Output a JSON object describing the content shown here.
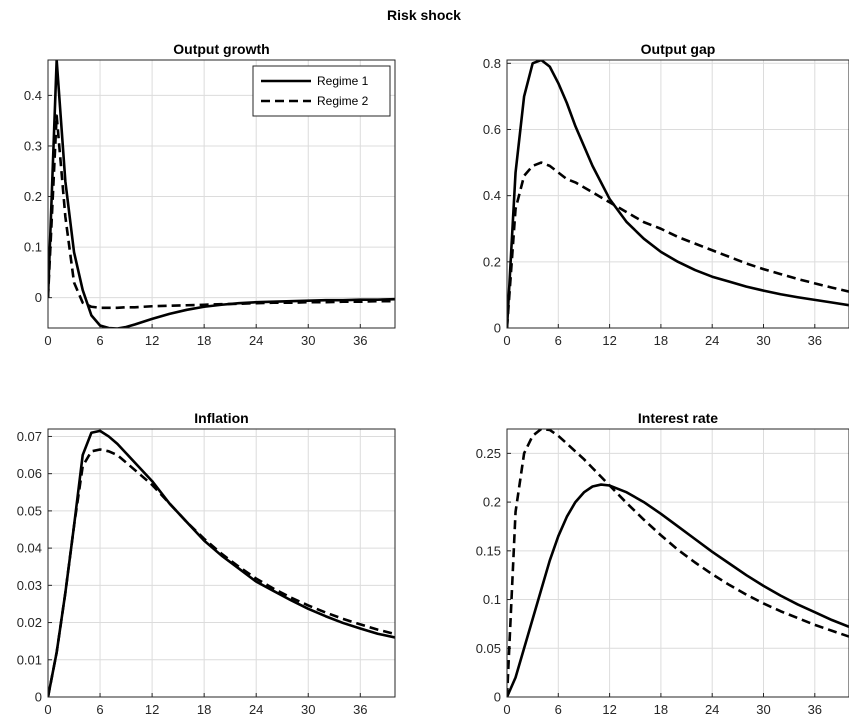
{
  "figure_title": "Risk shock",
  "colors": {
    "series_color": "#000000",
    "grid": "#dcdcdc",
    "axis": "#262626",
    "background": "#ffffff"
  },
  "chart_data": [
    {
      "type": "line",
      "title": "Output growth",
      "xlim": [
        0,
        40
      ],
      "ylim": [
        -0.06,
        0.47
      ],
      "xticks": [
        "0",
        "6",
        "12",
        "18",
        "24",
        "30",
        "36"
      ],
      "yticks": [
        "0",
        "0.1",
        "0.2",
        "0.3",
        "0.4"
      ],
      "grid": true,
      "legend": {
        "position": "top-right",
        "entries": [
          "Regime 1",
          "Regime 2"
        ]
      },
      "x": [
        0,
        1,
        2,
        3,
        4,
        5,
        6,
        7,
        8,
        9,
        10,
        12,
        14,
        16,
        18,
        20,
        22,
        24,
        26,
        28,
        30,
        32,
        34,
        36,
        38,
        40
      ],
      "series": [
        {
          "name": "Regime 1",
          "style": "solid",
          "values": [
            0,
            0.47,
            0.23,
            0.09,
            0.015,
            -0.035,
            -0.055,
            -0.06,
            -0.061,
            -0.058,
            -0.053,
            -0.042,
            -0.032,
            -0.024,
            -0.018,
            -0.014,
            -0.011,
            -0.009,
            -0.008,
            -0.007,
            -0.006,
            -0.005,
            -0.005,
            -0.004,
            -0.004,
            -0.003
          ]
        },
        {
          "name": "Regime 2",
          "style": "dashed",
          "values": [
            0,
            0.36,
            0.16,
            0.03,
            -0.01,
            -0.018,
            -0.02,
            -0.02,
            -0.02,
            -0.019,
            -0.019,
            -0.017,
            -0.016,
            -0.015,
            -0.014,
            -0.013,
            -0.012,
            -0.011,
            -0.01,
            -0.01,
            -0.009,
            -0.009,
            -0.008,
            -0.008,
            -0.007,
            -0.007
          ]
        }
      ]
    },
    {
      "type": "line",
      "title": "Output gap",
      "xlim": [
        0,
        40
      ],
      "ylim": [
        0,
        0.81
      ],
      "xticks": [
        "0",
        "6",
        "12",
        "18",
        "24",
        "30",
        "36"
      ],
      "yticks": [
        "0",
        "0.2",
        "0.4",
        "0.6",
        "0.8"
      ],
      "grid": true,
      "x": [
        0,
        1,
        2,
        3,
        4,
        5,
        6,
        7,
        8,
        10,
        12,
        14,
        16,
        18,
        20,
        22,
        24,
        26,
        28,
        30,
        32,
        34,
        36,
        38,
        40
      ],
      "series": [
        {
          "name": "Regime 1",
          "style": "solid",
          "values": [
            0,
            0.47,
            0.7,
            0.8,
            0.81,
            0.79,
            0.74,
            0.68,
            0.61,
            0.49,
            0.39,
            0.32,
            0.27,
            0.23,
            0.2,
            0.175,
            0.155,
            0.14,
            0.125,
            0.113,
            0.102,
            0.093,
            0.085,
            0.077,
            0.069
          ]
        },
        {
          "name": "Regime 2",
          "style": "dashed",
          "values": [
            0,
            0.36,
            0.46,
            0.49,
            0.5,
            0.49,
            0.47,
            0.45,
            0.44,
            0.41,
            0.38,
            0.35,
            0.32,
            0.3,
            0.275,
            0.255,
            0.235,
            0.215,
            0.195,
            0.178,
            0.163,
            0.148,
            0.135,
            0.122,
            0.11
          ]
        }
      ]
    },
    {
      "type": "line",
      "title": "Inflation",
      "xlim": [
        0,
        40
      ],
      "ylim": [
        0,
        0.072
      ],
      "xticks": [
        "0",
        "6",
        "12",
        "18",
        "24",
        "30",
        "36"
      ],
      "yticks": [
        "0",
        "0.01",
        "0.02",
        "0.03",
        "0.04",
        "0.05",
        "0.06",
        "0.07"
      ],
      "grid": true,
      "x": [
        0,
        1,
        2,
        3,
        4,
        5,
        6,
        7,
        8,
        10,
        12,
        14,
        16,
        18,
        20,
        22,
        24,
        26,
        28,
        30,
        32,
        34,
        36,
        38,
        40
      ],
      "series": [
        {
          "name": "Regime 1",
          "style": "solid",
          "values": [
            0,
            0.012,
            0.028,
            0.046,
            0.065,
            0.071,
            0.0715,
            0.07,
            0.068,
            0.063,
            0.058,
            0.052,
            0.047,
            0.042,
            0.038,
            0.0345,
            0.031,
            0.0285,
            0.026,
            0.0237,
            0.0217,
            0.0199,
            0.0184,
            0.017,
            0.016
          ]
        },
        {
          "name": "Regime 2",
          "style": "dashed",
          "values": [
            0,
            0.012,
            0.028,
            0.046,
            0.062,
            0.066,
            0.0665,
            0.066,
            0.065,
            0.061,
            0.057,
            0.052,
            0.047,
            0.0425,
            0.0385,
            0.035,
            0.0318,
            0.0291,
            0.0267,
            0.0246,
            0.0227,
            0.021,
            0.0195,
            0.0181,
            0.0169
          ]
        }
      ]
    },
    {
      "type": "line",
      "title": "Interest rate",
      "xlim": [
        0,
        40
      ],
      "ylim": [
        0,
        0.275
      ],
      "xticks": [
        "0",
        "6",
        "12",
        "18",
        "24",
        "30",
        "36"
      ],
      "yticks": [
        "0",
        "0.05",
        "0.1",
        "0.15",
        "0.2",
        "0.25"
      ],
      "grid": true,
      "x": [
        0,
        1,
        2,
        3,
        4,
        5,
        6,
        7,
        8,
        9,
        10,
        11,
        12,
        14,
        16,
        18,
        20,
        22,
        24,
        26,
        28,
        30,
        32,
        34,
        36,
        38,
        40
      ],
      "series": [
        {
          "name": "Regime 1",
          "style": "solid",
          "values": [
            0,
            0.02,
            0.05,
            0.08,
            0.11,
            0.14,
            0.165,
            0.185,
            0.2,
            0.21,
            0.216,
            0.218,
            0.217,
            0.21,
            0.2,
            0.188,
            0.175,
            0.162,
            0.149,
            0.137,
            0.125,
            0.114,
            0.104,
            0.095,
            0.087,
            0.079,
            0.072
          ]
        },
        {
          "name": "Regime 2",
          "style": "dashed",
          "values": [
            0,
            0.19,
            0.25,
            0.268,
            0.275,
            0.274,
            0.268,
            0.26,
            0.252,
            0.244,
            0.235,
            0.226,
            0.217,
            0.199,
            0.182,
            0.166,
            0.151,
            0.138,
            0.126,
            0.115,
            0.105,
            0.096,
            0.088,
            0.081,
            0.074,
            0.068,
            0.062
          ]
        }
      ]
    }
  ]
}
